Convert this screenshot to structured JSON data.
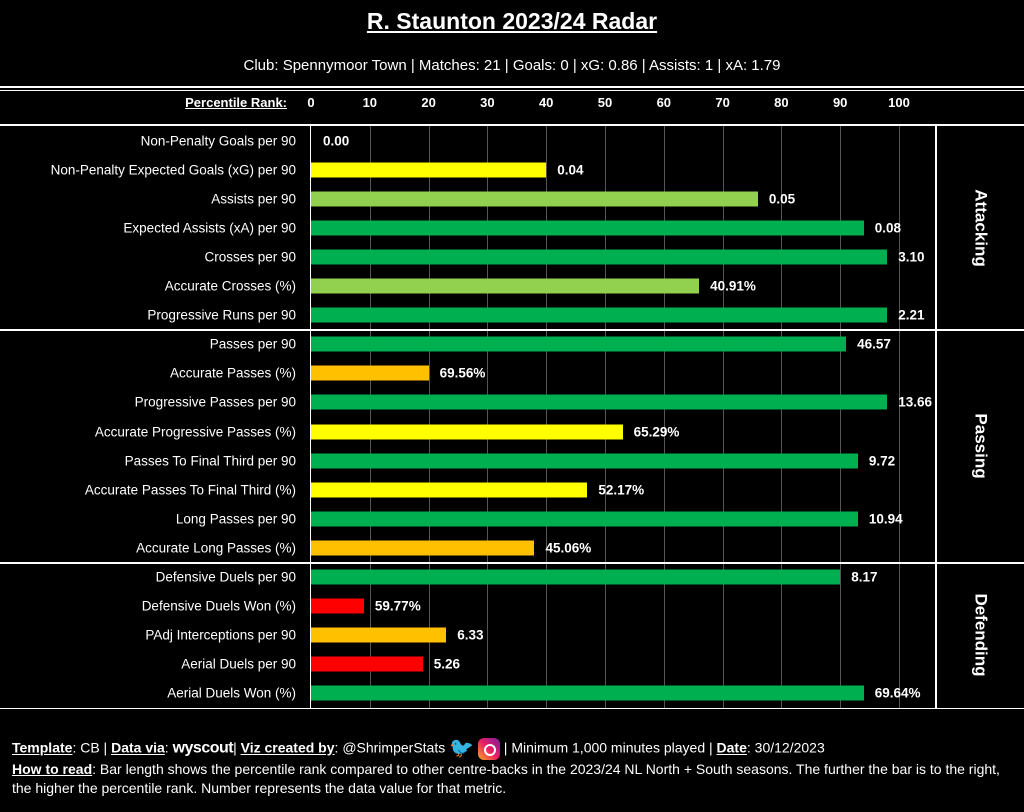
{
  "header": {
    "title": "R. Staunton 2023/24 Radar",
    "subtitle": "Club: Spennymoor Town | Matches: 21 | Goals: 0 | xG: 0.86 | Assists: 1 | xA: 1.79"
  },
  "chart_data": {
    "type": "bar",
    "orientation": "horizontal",
    "xlabel": "Percentile Rank:",
    "xlim": [
      0,
      100
    ],
    "ticks": [
      "0",
      "10",
      "20",
      "30",
      "40",
      "50",
      "60",
      "70",
      "80",
      "90",
      "100"
    ],
    "sections": [
      {
        "name": "Attacking",
        "rows": [
          {
            "label": "Non-Penalty Goals per 90",
            "percentile": 0,
            "value": "0.00",
            "color": "#00b050"
          },
          {
            "label": "Non-Penalty Expected Goals (xG) per 90",
            "percentile": 40,
            "value": "0.04",
            "color": "#ffff00"
          },
          {
            "label": "Assists per 90",
            "percentile": 76,
            "value": "0.05",
            "color": "#92d050"
          },
          {
            "label": "Expected Assists (xA) per 90",
            "percentile": 94,
            "value": "0.08",
            "color": "#00b050"
          },
          {
            "label": "Crosses per 90",
            "percentile": 98,
            "value": "3.10",
            "color": "#00b050"
          },
          {
            "label": "Accurate Crosses (%)",
            "percentile": 66,
            "value": "40.91%",
            "color": "#92d050"
          },
          {
            "label": "Progressive Runs per 90",
            "percentile": 98,
            "value": "2.21",
            "color": "#00b050"
          }
        ]
      },
      {
        "name": "Passing",
        "rows": [
          {
            "label": "Passes per 90",
            "percentile": 91,
            "value": "46.57",
            "color": "#00b050"
          },
          {
            "label": "Accurate Passes (%)",
            "percentile": 20,
            "value": "69.56%",
            "color": "#ffc000"
          },
          {
            "label": "Progressive Passes per 90",
            "percentile": 98,
            "value": "13.66",
            "color": "#00b050"
          },
          {
            "label": "Accurate Progressive Passes (%)",
            "percentile": 53,
            "value": "65.29%",
            "color": "#ffff00"
          },
          {
            "label": "Passes To Final Third per 90",
            "percentile": 93,
            "value": "9.72",
            "color": "#00b050"
          },
          {
            "label": "Accurate Passes To Final Third (%)",
            "percentile": 47,
            "value": "52.17%",
            "color": "#ffff00"
          },
          {
            "label": "Long Passes per 90",
            "percentile": 93,
            "value": "10.94",
            "color": "#00b050"
          },
          {
            "label": "Accurate Long Passes (%)",
            "percentile": 38,
            "value": "45.06%",
            "color": "#ffc000"
          }
        ]
      },
      {
        "name": "Defending",
        "rows": [
          {
            "label": "Defensive Duels per 90",
            "percentile": 90,
            "value": "8.17",
            "color": "#00b050"
          },
          {
            "label": "Defensive Duels Won (%)",
            "percentile": 9,
            "value": "59.77%",
            "color": "#ff0000"
          },
          {
            "label": "PAdj Interceptions per 90",
            "percentile": 23,
            "value": "6.33",
            "color": "#ffc000"
          },
          {
            "label": "Aerial Duels per 90",
            "percentile": 19,
            "value": "5.26",
            "color": "#ff0000"
          },
          {
            "label": "Aerial Duels Won (%)",
            "percentile": 94,
            "value": "69.64%",
            "color": "#00b050"
          }
        ]
      }
    ]
  },
  "footer": {
    "template_label": "Template",
    "template": "CB",
    "data_label": "Data via",
    "data_source": "wyscout",
    "viz_label": "Viz created by",
    "handle": "@ShrimperStats",
    "minimum": "Minimum 1,000 minutes played",
    "date_label": "Date",
    "date": "30/12/2023",
    "howto_label": "How to read",
    "howto": "Bar length shows the percentile rank compared to other centre-backs in the 2023/24 NL North + South seasons. The further the bar is to the right, the higher the percentile rank. Number represents the data value for that metric."
  }
}
